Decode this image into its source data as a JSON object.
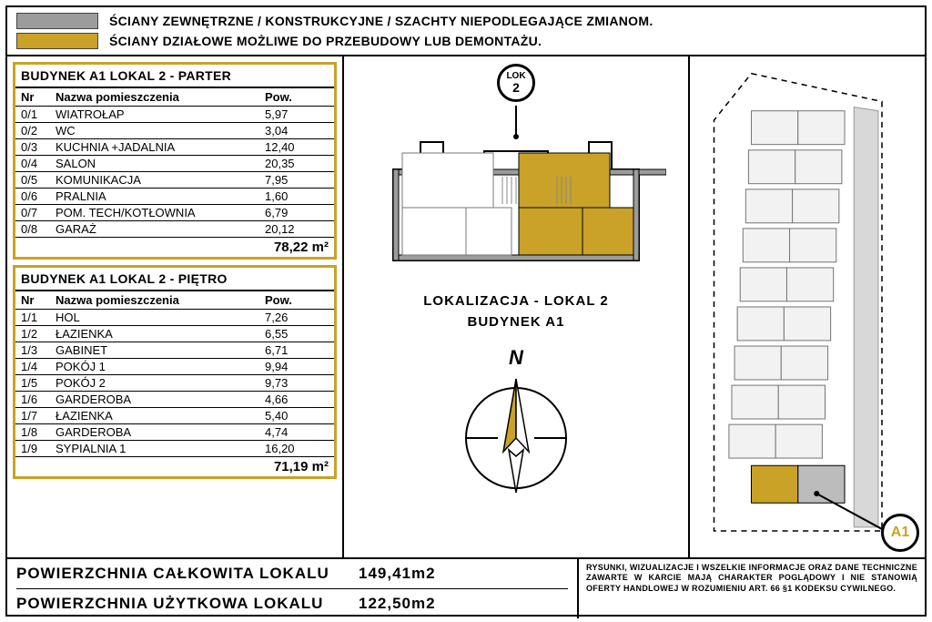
{
  "legend": {
    "swatch1_color": "#9c9c9c",
    "swatch2_color": "#c9a227",
    "line1": "ŚCIANY ZEWNĘTRZNE / KONSTRUKCYJNE / SZACHTY NIEPODLEGAJĄCE ZMIANOM.",
    "line2": "ŚCIANY DZIAŁOWE MOŻLIWE DO PRZEBUDOWY LUB DEMONTAŻU."
  },
  "tables": {
    "parter": {
      "title": "BUDYNEK A1 LOKAL 2 - PARTER",
      "head": {
        "c1": "Nr",
        "c2": "Nazwa pomieszczenia",
        "c3": "Pow."
      },
      "rows": [
        {
          "nr": "0/1",
          "name": "WIATROŁAP",
          "area": "5,97"
        },
        {
          "nr": "0/2",
          "name": "WC",
          "area": "3,04"
        },
        {
          "nr": "0/3",
          "name": "KUCHNIA +JADALNIA",
          "area": "12,40"
        },
        {
          "nr": "0/4",
          "name": "SALON",
          "area": "20,35"
        },
        {
          "nr": "0/5",
          "name": "KOMUNIKACJA",
          "area": "7,95"
        },
        {
          "nr": "0/6",
          "name": "PRALNIA",
          "area": "1,60"
        },
        {
          "nr": "0/7",
          "name": "POM. TECH/KOTŁOWNIA",
          "area": "6,79"
        },
        {
          "nr": "0/8",
          "name": "GARAŻ",
          "area": "20,12"
        }
      ],
      "total": "78,22 m²"
    },
    "pietro": {
      "title": "BUDYNEK A1 LOKAL 2 - PIĘTRO",
      "head": {
        "c1": "Nr",
        "c2": "Nazwa pomieszczenia",
        "c3": "Pow."
      },
      "rows": [
        {
          "nr": "1/1",
          "name": "HOL",
          "area": "7,26"
        },
        {
          "nr": "1/2",
          "name": "ŁAZIENKA",
          "area": "6,55"
        },
        {
          "nr": "1/3",
          "name": "GABINET",
          "area": "6,71"
        },
        {
          "nr": "1/4",
          "name": "POKÓJ 1",
          "area": "9,94"
        },
        {
          "nr": "1/5",
          "name": "POKÓJ 2",
          "area": "9,73"
        },
        {
          "nr": "1/6",
          "name": "GARDEROBA",
          "area": "4,66"
        },
        {
          "nr": "1/7",
          "name": "ŁAZIENKA",
          "area": "5,40"
        },
        {
          "nr": "1/8",
          "name": "GARDEROBA",
          "area": "4,74"
        },
        {
          "nr": "1/9",
          "name": "SYPIALNIA 1",
          "area": "16,20"
        }
      ],
      "total": "71,19 m²"
    }
  },
  "plan": {
    "lok_badge": "LOK 2",
    "title_line1": "LOKALIZACJA - LOKAL 2",
    "title_line2": "BUDYNEK A1",
    "accent_color": "#c9a227",
    "wall_color": "#9c9c9c",
    "n_label": "N"
  },
  "site": {
    "badge": "A1",
    "accent_color": "#c9a227"
  },
  "totals": {
    "row1_label": "POWIERZCHNIA CAŁKOWITA LOKALU",
    "row1_value": "149,41m2",
    "row2_label": "POWIERZCHNIA UŻYTKOWA LOKALU",
    "row2_value": "122,50m2"
  },
  "disclaimer": "RYSUNKI, WIZUALIZACJE I WSZELKIE INFORMACJE ORAZ DANE TECHNICZNE ZAWARTE W KARCIE MAJĄ CHARAKTER POGLĄDOWY I NIE STANOWIĄ OFERTY HANDLOWEJ W ROZUMIENIU ART. 66 §1 KODEKSU CYWILNEGO."
}
